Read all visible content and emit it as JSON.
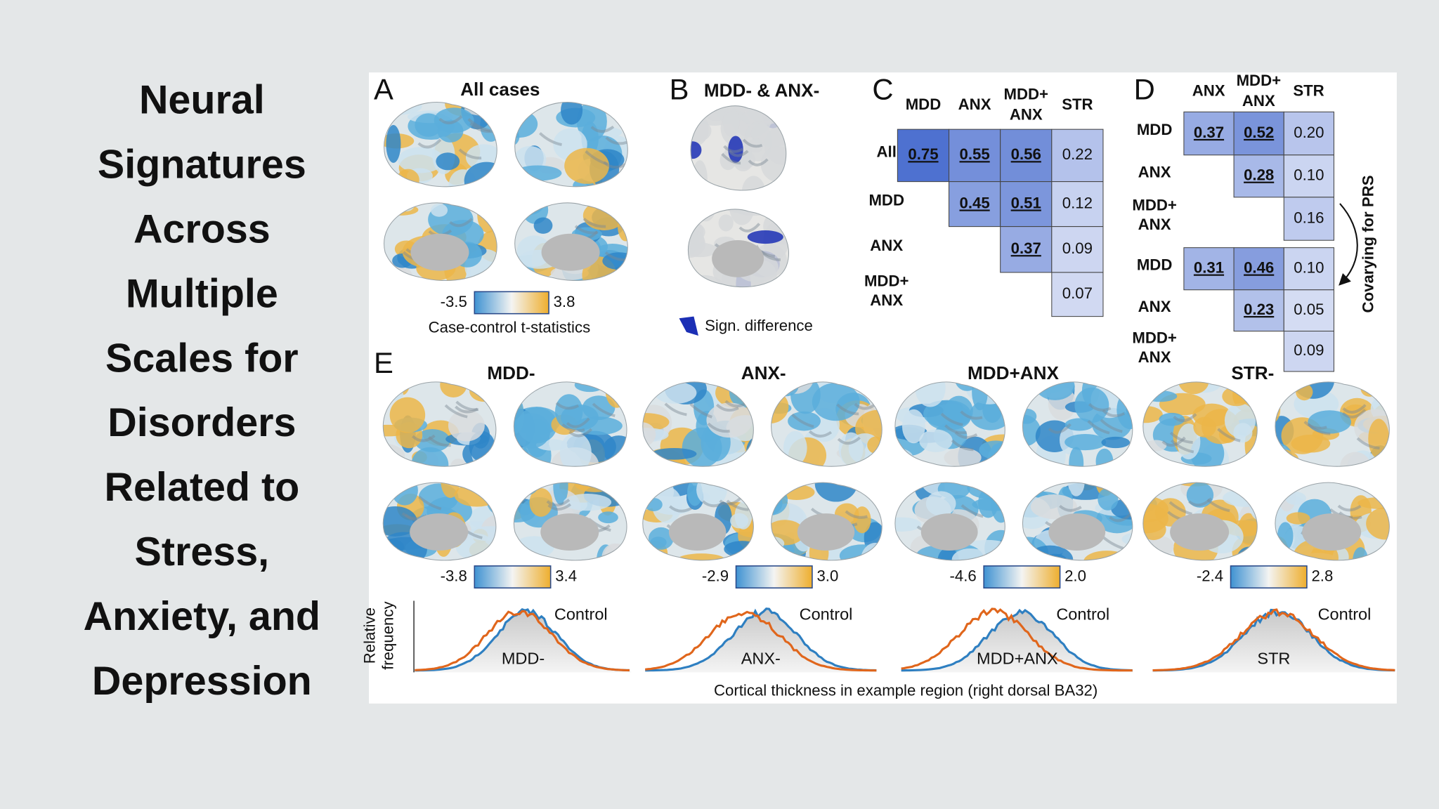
{
  "slide": {
    "title_lines": [
      "Neural",
      "Signatures",
      "Across",
      "Multiple",
      "Scales for",
      "Disorders",
      "Related to",
      "Stress,",
      "Anxiety, and",
      "Depression"
    ]
  },
  "figure": {
    "panel_a": {
      "letter": "A",
      "title": "All cases",
      "colorbar": {
        "min": "-3.5",
        "max": "3.8",
        "label": "Case-control t-statistics"
      }
    },
    "panel_b": {
      "letter": "B",
      "title": "MDD- & ANX-",
      "legend": "Sign. difference"
    },
    "panel_c": {
      "letter": "C",
      "columns": [
        [
          "MDD"
        ],
        [
          "ANX"
        ],
        [
          "MDD+",
          "ANX"
        ],
        [
          "STR"
        ]
      ],
      "rows": [
        {
          "label": [
            "All"
          ],
          "cells": [
            {
              "value": "0.75",
              "significant": true
            },
            {
              "value": "0.55",
              "significant": true
            },
            {
              "value": "0.56",
              "significant": true
            },
            {
              "value": "0.22",
              "significant": false
            }
          ]
        },
        {
          "label": [
            "MDD"
          ],
          "cells": [
            {
              "value": "0.45",
              "significant": true
            },
            {
              "value": "0.51",
              "significant": true
            },
            {
              "value": "0.12",
              "significant": false
            }
          ]
        },
        {
          "label": [
            "ANX"
          ],
          "cells": [
            {
              "value": "0.37",
              "significant": true
            },
            {
              "value": "0.09",
              "significant": false
            }
          ]
        },
        {
          "label": [
            "MDD+",
            "ANX"
          ],
          "cells": [
            {
              "value": "0.07",
              "significant": false
            }
          ]
        }
      ]
    },
    "panel_d": {
      "letter": "D",
      "columns": [
        [
          "ANX"
        ],
        [
          "MDD+",
          "ANX"
        ],
        [
          "STR"
        ]
      ],
      "side_label": "Covarying for PRS",
      "tables": [
        {
          "rows": [
            {
              "label": [
                "MDD"
              ],
              "cells": [
                {
                  "value": "0.37",
                  "significant": true
                },
                {
                  "value": "0.52",
                  "significant": true
                },
                {
                  "value": "0.20",
                  "significant": false
                }
              ]
            },
            {
              "label": [
                "ANX"
              ],
              "cells": [
                {
                  "value": "0.28",
                  "significant": true
                },
                {
                  "value": "0.10",
                  "significant": false
                }
              ]
            },
            {
              "label": [
                "MDD+",
                "ANX"
              ],
              "cells": [
                {
                  "value": "0.16",
                  "significant": false
                }
              ]
            }
          ]
        },
        {
          "rows": [
            {
              "label": [
                "MDD"
              ],
              "cells": [
                {
                  "value": "0.31",
                  "significant": true
                },
                {
                  "value": "0.46",
                  "significant": true
                },
                {
                  "value": "0.10",
                  "significant": false
                }
              ]
            },
            {
              "label": [
                "ANX"
              ],
              "cells": [
                {
                  "value": "0.23",
                  "significant": true
                },
                {
                  "value": "0.05",
                  "significant": false
                }
              ]
            },
            {
              "label": [
                "MDD+",
                "ANX"
              ],
              "cells": [
                {
                  "value": "0.09",
                  "significant": false
                }
              ]
            }
          ]
        }
      ]
    },
    "panel_e": {
      "letter": "E",
      "groups": [
        {
          "title": "MDD-",
          "colorbar": {
            "min": "-3.8",
            "max": "3.4"
          },
          "case_label": "MDD-",
          "control_label": "Control"
        },
        {
          "title": "ANX-",
          "colorbar": {
            "min": "-2.9",
            "max": "3.0"
          },
          "case_label": "ANX-",
          "control_label": "Control"
        },
        {
          "title": "MDD+ANX",
          "colorbar": {
            "min": "-4.6",
            "max": "2.0"
          },
          "case_label": "MDD+ANX",
          "control_label": "Control"
        },
        {
          "title": "STR-",
          "colorbar": {
            "min": "-2.4",
            "max": "2.8"
          },
          "case_label": "STR",
          "control_label": "Control"
        }
      ],
      "y_label": [
        "Relative",
        "frequency"
      ],
      "x_label": "Cortical thickness in example region (right dorsal BA32)"
    }
  }
}
